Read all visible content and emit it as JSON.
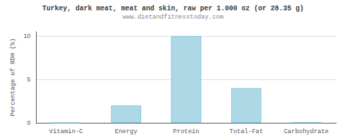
{
  "chart_data": {
    "type": "bar",
    "title": "Turkey, dark meat, meat and skin, raw per 1.000 oz (or 28.35 g)",
    "subtitle": "www.dietandfitnesstoday.com",
    "categories": [
      "Vitamin-C",
      "Energy",
      "Protein",
      "Total-Fat",
      "Carbohydrate"
    ],
    "values": [
      0,
      2.0,
      10.0,
      4.0,
      0.05
    ],
    "color": "#add8e6",
    "ylabel": "Percentage of RDH (%)",
    "ylim": [
      0,
      10.5
    ],
    "yticks": [
      0,
      5,
      10
    ],
    "grid": true
  }
}
